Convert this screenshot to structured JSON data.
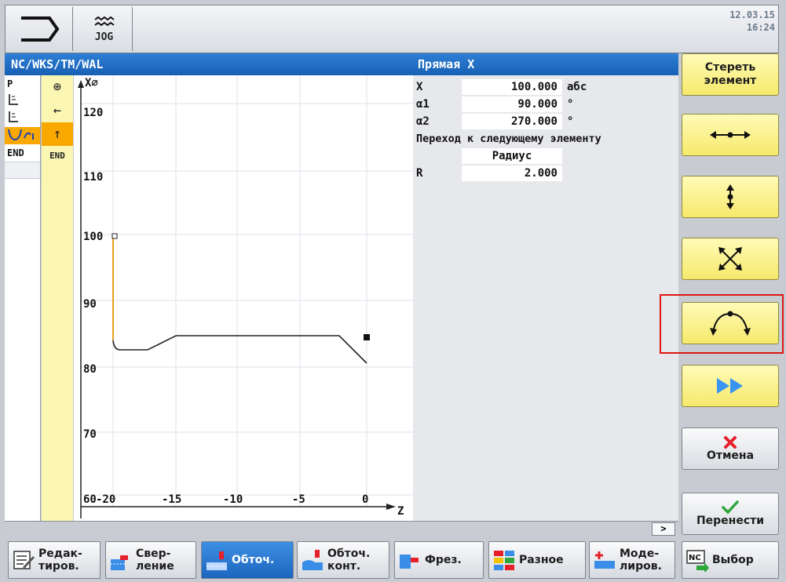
{
  "header": {
    "mode_label": "JOG",
    "date": "12.03.15",
    "time": "16:24"
  },
  "titlebar": {
    "path": "NC/WKS/TM/WAL",
    "element_title": "Прямая X"
  },
  "program_list": {
    "items": [
      "P",
      "",
      "",
      "",
      "END",
      ""
    ],
    "selected_index": 3
  },
  "tool_column": {
    "end_label": "END"
  },
  "graphic": {
    "x_axis_label": "X⌀",
    "z_axis_label": "Z",
    "x_ticks": [
      "120",
      "110",
      "100",
      "90",
      "80",
      "70",
      "60"
    ],
    "z_ticks": [
      "-20",
      "-15",
      "-10",
      "-5",
      "0"
    ]
  },
  "params": {
    "rows": [
      {
        "label": "X",
        "value": "100.000",
        "unit": "абс"
      },
      {
        "label": "α1",
        "value": "90.000",
        "unit": "°"
      },
      {
        "label": "α2",
        "value": "270.000",
        "unit": "°"
      }
    ],
    "transition_label": "Переход к следующему элементу",
    "transition_value": "Радиус",
    "r_label": "R",
    "r_value": "2.000"
  },
  "status": {
    "more_label": ">"
  },
  "right_softkeys": {
    "delete_line1": "Стереть",
    "delete_line2": "элемент",
    "cancel_label": "Отмена",
    "accept_label": "Перенести"
  },
  "bottom_softkeys": [
    {
      "line1": "Редак-",
      "line2": "тиров."
    },
    {
      "line1": "Свер-",
      "line2": "ление"
    },
    {
      "line1": "Обточ.",
      "line2": ""
    },
    {
      "line1": "Обточ.",
      "line2": "конт."
    },
    {
      "line1": "Фрез.",
      "line2": ""
    },
    {
      "line1": "Разное",
      "line2": ""
    },
    {
      "line1": "Моде-",
      "line2": "лиров."
    },
    {
      "line1": "Выбор",
      "line2": ""
    }
  ],
  "colors": {
    "title_blue": "#1f6fc8",
    "softkey_yellow": "#f6e96b",
    "selection_orange": "#f8a800",
    "highlight_red": "#e01414"
  }
}
